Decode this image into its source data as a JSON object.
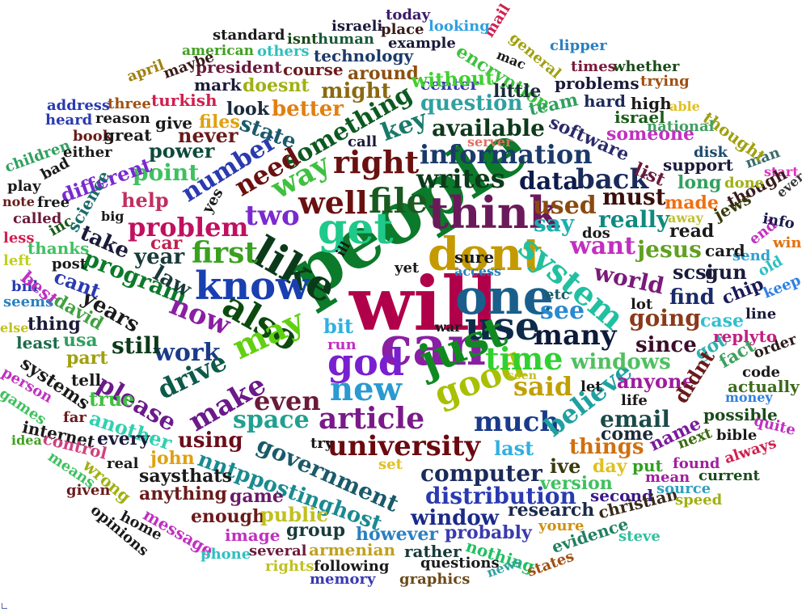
{
  "words": [
    {
      "text": "will",
      "color": "#b0004a"
    },
    {
      "text": "people",
      "color": "#0b7a2a"
    },
    {
      "text": "can",
      "color": "#8a1fa3"
    },
    {
      "text": "one",
      "color": "#1a5f8c"
    },
    {
      "text": "dont",
      "color": "#c49a00"
    },
    {
      "text": "think",
      "color": "#6a1a5a"
    },
    {
      "text": "like",
      "color": "#0b3a1a"
    },
    {
      "text": "get",
      "color": "#1ec98a"
    },
    {
      "text": "know",
      "color": "#1a3fb0"
    },
    {
      "text": "use",
      "color": "#0d2a4a"
    },
    {
      "text": "just",
      "color": "#108a20"
    },
    {
      "text": "god",
      "color": "#7a1fd0"
    },
    {
      "text": "new",
      "color": "#2a9ad0"
    },
    {
      "text": "also",
      "color": "#0d4a10"
    },
    {
      "text": "may",
      "color": "#60d010"
    },
    {
      "text": "good",
      "color": "#a8c000"
    },
    {
      "text": "time",
      "color": "#30d030"
    },
    {
      "text": "system",
      "color": "#20c0a0"
    },
    {
      "text": "file",
      "color": "#1a5a20"
    },
    {
      "text": "well",
      "color": "#6a1010"
    },
    {
      "text": "right",
      "color": "#6a1010"
    },
    {
      "text": "first",
      "color": "#3aa020"
    },
    {
      "text": "two",
      "color": "#7a2ad0"
    },
    {
      "text": "article",
      "color": "#7a1a8a"
    },
    {
      "text": "university",
      "color": "#6a0a10"
    },
    {
      "text": "government",
      "color": "#1a5a6a"
    },
    {
      "text": "much",
      "color": "#1a3a8a"
    },
    {
      "text": "said",
      "color": "#c0a000"
    },
    {
      "text": "believe",
      "color": "#20a0a0"
    },
    {
      "text": "many",
      "color": "#0d1a3a"
    },
    {
      "text": "see",
      "color": "#2a8ad0"
    },
    {
      "text": "even",
      "color": "#6a1a3a"
    },
    {
      "text": "make",
      "color": "#6a1a8a"
    },
    {
      "text": "space",
      "color": "#20a090"
    },
    {
      "text": "nntppostinghost",
      "color": "#1a8a90"
    },
    {
      "text": "writes",
      "color": "#0d3a1a"
    },
    {
      "text": "data",
      "color": "#0d1a4a"
    },
    {
      "text": "back",
      "color": "#1a2a5a"
    },
    {
      "text": "information",
      "color": "#1a3a6a"
    },
    {
      "text": "used",
      "color": "#8a4a10"
    },
    {
      "text": "say",
      "color": "#1ab0b0"
    },
    {
      "text": "available",
      "color": "#0d3a1a"
    },
    {
      "text": "something",
      "color": "#0d5a20"
    },
    {
      "text": "way",
      "color": "#40c040"
    },
    {
      "text": "need",
      "color": "#6a1010"
    },
    {
      "text": "number",
      "color": "#2a3ab0"
    },
    {
      "text": "problem",
      "color": "#c01060"
    },
    {
      "text": "program",
      "color": "#0b7a2a"
    },
    {
      "text": "now",
      "color": "#8a1fa3"
    },
    {
      "text": "work",
      "color": "#1a3a8a"
    },
    {
      "text": "drive",
      "color": "#0d5a4a"
    },
    {
      "text": "please",
      "color": "#6a1a8a"
    },
    {
      "text": "want",
      "color": "#c030c0"
    },
    {
      "text": "really",
      "color": "#108a80"
    },
    {
      "text": "must",
      "color": "#3a0d0d"
    },
    {
      "text": "world",
      "color": "#7a1a7a"
    },
    {
      "text": "jesus",
      "color": "#60a020"
    },
    {
      "text": "going",
      "color": "#8a3a1a"
    },
    {
      "text": "find",
      "color": "#1a2a6a"
    },
    {
      "text": "since",
      "color": "#3a0d2a"
    },
    {
      "text": "windows",
      "color": "#50c060"
    },
    {
      "text": "anyone",
      "color": "#a01aa0"
    },
    {
      "text": "email",
      "color": "#1a4a4a"
    },
    {
      "text": "things",
      "color": "#d07010"
    },
    {
      "text": "computer",
      "color": "#1a2a5a"
    },
    {
      "text": "distribution",
      "color": "#2a3ab0"
    },
    {
      "text": "window",
      "color": "#1a2a8a"
    },
    {
      "text": "version",
      "color": "#40c060"
    },
    {
      "text": "using",
      "color": "#6a0d1a"
    },
    {
      "text": "another",
      "color": "#30d0b0"
    },
    {
      "text": "years",
      "color": "#1a1a1a"
    },
    {
      "text": "still",
      "color": "#0d3a1a"
    },
    {
      "text": "question",
      "color": "#30a0a0"
    },
    {
      "text": "better",
      "color": "#e08010"
    },
    {
      "text": "key",
      "color": "#1a7a6a"
    },
    {
      "text": "might",
      "color": "#8a6a10"
    },
    {
      "text": "software",
      "color": "#2a2a6a"
    },
    {
      "text": "made",
      "color": "#f07010"
    },
    {
      "text": "scsi",
      "color": "#1a1a3a"
    },
    {
      "text": "gun",
      "color": "#1a1a3a"
    },
    {
      "text": "chip",
      "color": "#1a1a5a"
    },
    {
      "text": "case",
      "color": "#30c0d0"
    },
    {
      "text": "got",
      "color": "#30b0b0"
    },
    {
      "text": "fact",
      "color": "#40a060"
    },
    {
      "text": "didnt",
      "color": "#6a1a1a"
    },
    {
      "text": "name",
      "color": "#7a1a9a"
    },
    {
      "text": "come",
      "color": "#1a2a3a"
    },
    {
      "text": "last",
      "color": "#30b0e0"
    },
    {
      "text": "ive",
      "color": "#3a3a0d"
    },
    {
      "text": "day",
      "color": "#e0c020"
    },
    {
      "text": "put",
      "color": "#30a020"
    },
    {
      "text": "mean",
      "color": "#a020a0"
    },
    {
      "text": "second",
      "color": "#3a1a8a"
    },
    {
      "text": "research",
      "color": "#1a2a4a"
    },
    {
      "text": "probably",
      "color": "#3a3ab0"
    },
    {
      "text": "however",
      "color": "#2a80c0"
    },
    {
      "text": "rather",
      "color": "#1a3a3a"
    },
    {
      "text": "nothing",
      "color": "#20c060"
    },
    {
      "text": "evidence",
      "color": "#208060"
    },
    {
      "text": "christian",
      "color": "#3a2a1a"
    },
    {
      "text": "youre",
      "color": "#d09010"
    },
    {
      "text": "steve",
      "color": "#30c0a0"
    },
    {
      "text": "speed",
      "color": "#a0b010"
    },
    {
      "text": "source",
      "color": "#30a0c0"
    },
    {
      "text": "current",
      "color": "#1a4a1a"
    },
    {
      "text": "found",
      "color": "#a020a0"
    },
    {
      "text": "always",
      "color": "#d02050"
    },
    {
      "text": "next",
      "color": "#3a6a0d"
    },
    {
      "text": "bible",
      "color": "#1a1a1a"
    },
    {
      "text": "possible",
      "color": "#1a4a1a"
    },
    {
      "text": "quite",
      "color": "#c030c0"
    },
    {
      "text": "money",
      "color": "#3080e0"
    },
    {
      "text": "actually",
      "color": "#3a6a1a"
    },
    {
      "text": "code",
      "color": "#1a1a1a"
    },
    {
      "text": "order",
      "color": "#2a1a1a"
    },
    {
      "text": "line",
      "color": "#1a1a3a"
    },
    {
      "text": "keep",
      "color": "#3080e0"
    },
    {
      "text": "replyto",
      "color": "#c02080"
    },
    {
      "text": "old",
      "color": "#30c0c0"
    },
    {
      "text": "send",
      "color": "#30a0d0"
    },
    {
      "text": "end",
      "color": "#c030c0"
    },
    {
      "text": "win",
      "color": "#e07010"
    },
    {
      "text": "info",
      "color": "#1a1a4a"
    },
    {
      "text": "ever",
      "color": "#3a3a3a"
    },
    {
      "text": "start",
      "color": "#e030c0"
    },
    {
      "text": "man",
      "color": "#3a6a6a"
    },
    {
      "text": "though",
      "color": "#3a1a1a"
    },
    {
      "text": "jews",
      "color": "#3a3a0d"
    },
    {
      "text": "done",
      "color": "#a0b010"
    },
    {
      "text": "away",
      "color": "#c0c030"
    },
    {
      "text": "long",
      "color": "#30a060"
    },
    {
      "text": "read",
      "color": "#1a1a1a"
    },
    {
      "text": "card",
      "color": "#1a1a1a"
    },
    {
      "text": "support",
      "color": "#1a1a3a"
    },
    {
      "text": "list",
      "color": "#6a1a3a"
    },
    {
      "text": "disk",
      "color": "#1a4a6a"
    },
    {
      "text": "thought",
      "color": "#a0a010"
    },
    {
      "text": "national",
      "color": "#40a060"
    },
    {
      "text": "someone",
      "color": "#c030c0"
    },
    {
      "text": "israel",
      "color": "#1a5a1a"
    },
    {
      "text": "hard",
      "color": "#1a2a5a"
    },
    {
      "text": "high",
      "color": "#1a1a1a"
    },
    {
      "text": "able",
      "color": "#e0c020"
    },
    {
      "text": "whether",
      "color": "#1a4a1a"
    },
    {
      "text": "times",
      "color": "#7a1a3a"
    },
    {
      "text": "trying",
      "color": "#a05010"
    },
    {
      "text": "problems",
      "color": "#1a1a3a"
    },
    {
      "text": "clipper",
      "color": "#2a80c0"
    },
    {
      "text": "general",
      "color": "#a0a010"
    },
    {
      "text": "mac",
      "color": "#1a1a1a"
    },
    {
      "text": "mail",
      "color": "#d02050"
    },
    {
      "text": "encryption",
      "color": "#40c040"
    },
    {
      "text": "team",
      "color": "#30a060"
    },
    {
      "text": "little",
      "color": "#1a2a3a"
    },
    {
      "text": "center",
      "color": "#3a3ab0"
    },
    {
      "text": "looking",
      "color": "#30a0e0"
    },
    {
      "text": "today",
      "color": "#3a1a6a"
    },
    {
      "text": "place",
      "color": "#3a1a1a"
    },
    {
      "text": "israeli",
      "color": "#1a1a3a"
    },
    {
      "text": "example",
      "color": "#1a1a3a"
    },
    {
      "text": "human",
      "color": "#1a5a3a"
    },
    {
      "text": "isnt",
      "color": "#1a4a1a"
    },
    {
      "text": "standard",
      "color": "#1a1a1a"
    },
    {
      "text": "american",
      "color": "#40a020"
    },
    {
      "text": "others",
      "color": "#30c0c0"
    },
    {
      "text": "technology",
      "color": "#1a3a6a"
    },
    {
      "text": "around",
      "color": "#8a5010"
    },
    {
      "text": "course",
      "color": "#6a1a1a"
    },
    {
      "text": "president",
      "color": "#6a1a3a"
    },
    {
      "text": "mark",
      "color": "#1a1a3a"
    },
    {
      "text": "doesnt",
      "color": "#a0b010"
    },
    {
      "text": "without",
      "color": "#40d030"
    },
    {
      "text": "april",
      "color": "#a08010"
    },
    {
      "text": "maybe",
      "color": "#3a1a1a"
    },
    {
      "text": "three",
      "color": "#a05010"
    },
    {
      "text": "turkish",
      "color": "#d02050"
    },
    {
      "text": "look",
      "color": "#1a2a3a"
    },
    {
      "text": "address",
      "color": "#2a3ab0"
    },
    {
      "text": "reason",
      "color": "#1a1a1a"
    },
    {
      "text": "heard",
      "color": "#2a3ab0"
    },
    {
      "text": "give",
      "color": "#1a1a1a"
    },
    {
      "text": "files",
      "color": "#e0a010"
    },
    {
      "text": "book",
      "color": "#6a1a1a"
    },
    {
      "text": "great",
      "color": "#1a1a1a"
    },
    {
      "text": "never",
      "color": "#6a1a1a"
    },
    {
      "text": "state",
      "color": "#1a5a6a"
    },
    {
      "text": "call",
      "color": "#1a1a3a"
    },
    {
      "text": "server",
      "color": "#e07060"
    },
    {
      "text": "children",
      "color": "#30a060"
    },
    {
      "text": "either",
      "color": "#1a1a1a"
    },
    {
      "text": "power",
      "color": "#0d4a3a"
    },
    {
      "text": "point",
      "color": "#40c060"
    },
    {
      "text": "play",
      "color": "#1a1a1a"
    },
    {
      "text": "bad",
      "color": "#1a1a1a"
    },
    {
      "text": "different",
      "color": "#7a2ad0"
    },
    {
      "text": "note",
      "color": "#6a1a1a"
    },
    {
      "text": "free",
      "color": "#1a1a1a"
    },
    {
      "text": "science",
      "color": "#1a6a6a"
    },
    {
      "text": "help",
      "color": "#c03060"
    },
    {
      "text": "yes",
      "color": "#1a1a1a"
    },
    {
      "text": "called",
      "color": "#6a1a3a"
    },
    {
      "text": "inc",
      "color": "#1a5a1a"
    },
    {
      "text": "big",
      "color": "#1a1a1a"
    },
    {
      "text": "less",
      "color": "#d02050"
    },
    {
      "text": "thanks",
      "color": "#40c060"
    },
    {
      "text": "take",
      "color": "#1a1a3a"
    },
    {
      "text": "car",
      "color": "#c02050"
    },
    {
      "text": "year",
      "color": "#1a3a3a"
    },
    {
      "text": "left",
      "color": "#c0d020"
    },
    {
      "text": "post",
      "color": "#1a1a1a"
    },
    {
      "text": "law",
      "color": "#1a3a3a"
    },
    {
      "text": "ill",
      "color": "#1a1a1a"
    },
    {
      "text": "cant",
      "color": "#2a3ab0"
    },
    {
      "text": "bill",
      "color": "#2a3ab0"
    },
    {
      "text": "best",
      "color": "#c030c0"
    },
    {
      "text": "seems",
      "color": "#2a80c0"
    },
    {
      "text": "david",
      "color": "#40a040"
    },
    {
      "text": "else",
      "color": "#c0c020"
    },
    {
      "text": "thing",
      "color": "#1a1a3a"
    },
    {
      "text": "usa",
      "color": "#30a060"
    },
    {
      "text": "least",
      "color": "#1a6a4a"
    },
    {
      "text": "part",
      "color": "#a0a010"
    },
    {
      "text": "systems",
      "color": "#1a1a1a"
    },
    {
      "text": "person",
      "color": "#c030c0"
    },
    {
      "text": "tell",
      "color": "#1a1a1a"
    },
    {
      "text": "games",
      "color": "#40c060"
    },
    {
      "text": "true",
      "color": "#40c040"
    },
    {
      "text": "far",
      "color": "#6a1a1a"
    },
    {
      "text": "internet",
      "color": "#1a1a1a"
    },
    {
      "text": "idea",
      "color": "#40a020"
    },
    {
      "text": "control",
      "color": "#d04080"
    },
    {
      "text": "every",
      "color": "#1a1a3a"
    },
    {
      "text": "means",
      "color": "#40c060"
    },
    {
      "text": "wrong",
      "color": "#a0b010"
    },
    {
      "text": "real",
      "color": "#1a1a1a"
    },
    {
      "text": "john",
      "color": "#e0a010"
    },
    {
      "text": "says",
      "color": "#1a1a1a"
    },
    {
      "text": "thats",
      "color": "#1a1a1a"
    },
    {
      "text": "given",
      "color": "#6a1a1a"
    },
    {
      "text": "anything",
      "color": "#6a1a1a"
    },
    {
      "text": "opinions",
      "color": "#1a1a1a"
    },
    {
      "text": "home",
      "color": "#1a1a1a"
    },
    {
      "text": "message",
      "color": "#c030c0"
    },
    {
      "text": "enough",
      "color": "#6a1a1a"
    },
    {
      "text": "game",
      "color": "#6a1a6a"
    },
    {
      "text": "image",
      "color": "#c030c0"
    },
    {
      "text": "public",
      "color": "#c0c020"
    },
    {
      "text": "group",
      "color": "#1a3a3a"
    },
    {
      "text": "phone",
      "color": "#30c0c0"
    },
    {
      "text": "several",
      "color": "#6a1a3a"
    },
    {
      "text": "armenian",
      "color": "#c0a020"
    },
    {
      "text": "rights",
      "color": "#c0c020"
    },
    {
      "text": "following",
      "color": "#1a1a1a"
    },
    {
      "text": "memory",
      "color": "#3a3ab0"
    },
    {
      "text": "questions",
      "color": "#1a1a1a"
    },
    {
      "text": "graphics",
      "color": "#6a4a1a"
    },
    {
      "text": "news",
      "color": "#30a0a0"
    },
    {
      "text": "states",
      "color": "#a05010"
    },
    {
      "text": "set",
      "color": "#e0c020"
    },
    {
      "text": "try",
      "color": "#1a1a1a"
    },
    {
      "text": "life",
      "color": "#1a1a1a"
    },
    {
      "text": "let",
      "color": "#1a1a1a"
    },
    {
      "text": "seen",
      "color": "#c0c020"
    },
    {
      "text": "etc",
      "color": "#1a5a6a"
    },
    {
      "text": "war",
      "color": "#1a1a1a"
    },
    {
      "text": "run",
      "color": "#c030c0"
    },
    {
      "text": "bit",
      "color": "#30b0e0"
    },
    {
      "text": "access",
      "color": "#2a80c0"
    },
    {
      "text": "yet",
      "color": "#1a1a1a"
    },
    {
      "text": "sure",
      "color": "#1a1a1a"
    },
    {
      "text": "dos",
      "color": "#1a1a1a"
    },
    {
      "text": "lot",
      "color": "#1a1a1a"
    }
  ]
}
